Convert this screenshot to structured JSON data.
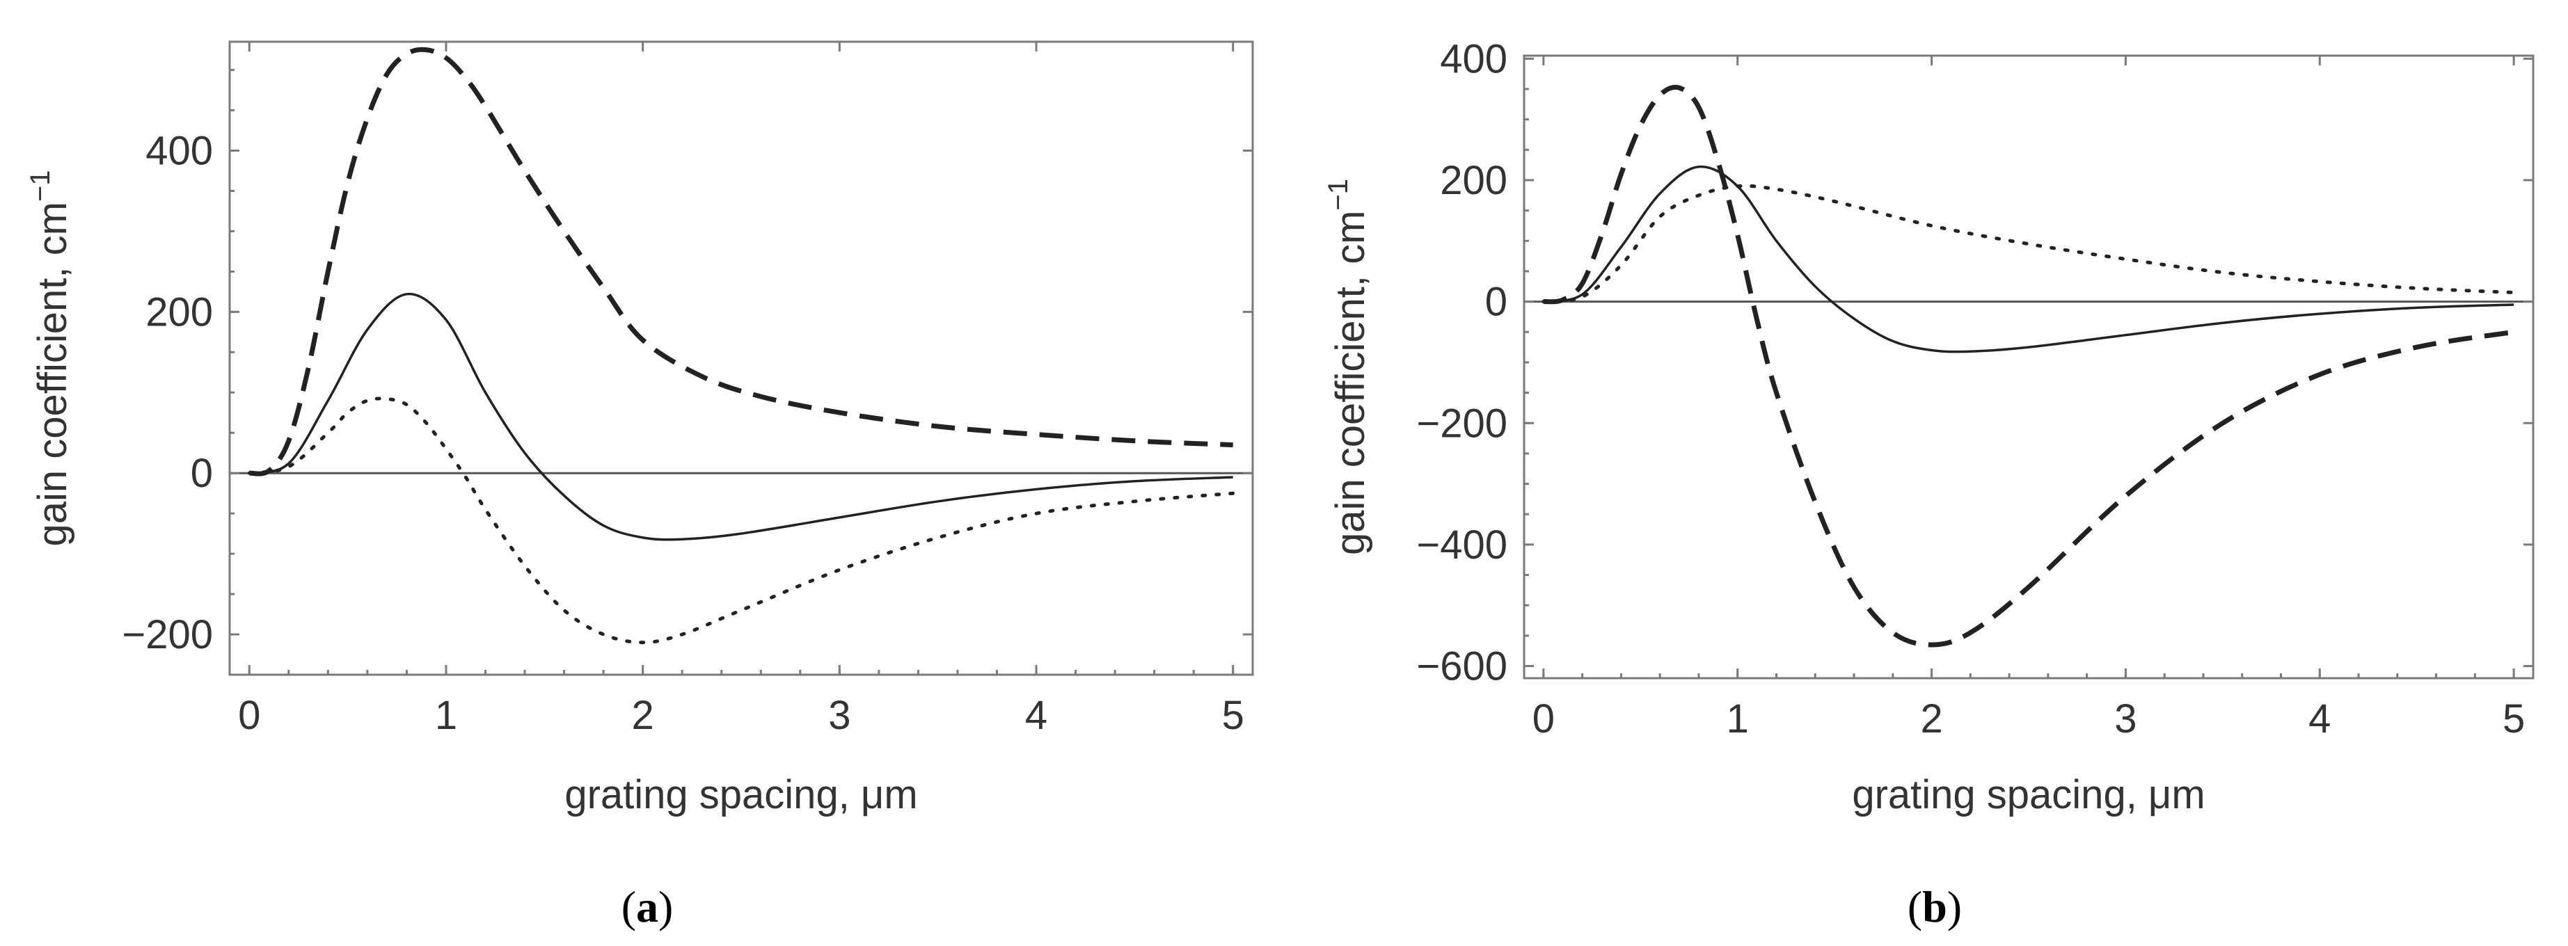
{
  "chart_data": [
    {
      "type": "line",
      "panel": "a",
      "caption_open": "(",
      "caption_letter": "a",
      "caption_close": ")",
      "xlabel": "grating spacing,  μm",
      "ylabel": "gain coefficient,  cm",
      "ylabel_superscript": "−1",
      "xlim": [
        -0.1,
        5.1
      ],
      "ylim": [
        -250,
        535
      ],
      "xticks": [
        0,
        1,
        2,
        3,
        4,
        5
      ],
      "xtick_labels": [
        "0",
        "1",
        "2",
        "3",
        "4",
        "5"
      ],
      "yticks": [
        -200,
        0,
        200,
        400
      ],
      "ytick_labels": [
        "−200",
        "0",
        "200",
        "400"
      ],
      "series": [
        {
          "name": "solid",
          "style": "solid",
          "x": [
            0,
            0.2,
            0.4,
            0.6,
            0.8,
            1.0,
            1.2,
            1.4,
            1.6,
            1.8,
            2.0,
            2.2,
            2.5,
            3.0,
            3.5,
            4.0,
            4.5,
            5.0
          ],
          "y": [
            0,
            12,
            90,
            178,
            222,
            190,
            100,
            25,
            -28,
            -65,
            -80,
            -82,
            -75,
            -55,
            -35,
            -20,
            -10,
            -5
          ]
        },
        {
          "name": "dashed",
          "style": "dashed",
          "x": [
            0,
            0.1,
            0.2,
            0.3,
            0.4,
            0.5,
            0.6,
            0.7,
            0.8,
            0.9,
            1.0,
            1.1,
            1.2,
            1.4,
            1.6,
            1.8,
            2.0,
            2.3,
            2.6,
            3.0,
            3.5,
            4.0,
            4.5,
            5.0
          ],
          "y": [
            0,
            3,
            40,
            130,
            250,
            360,
            440,
            495,
            520,
            525,
            515,
            490,
            455,
            375,
            300,
            230,
            165,
            120,
            95,
            75,
            58,
            48,
            40,
            35
          ]
        },
        {
          "name": "dotted",
          "style": "dotted",
          "x": [
            0,
            0.2,
            0.4,
            0.5,
            0.6,
            0.7,
            0.8,
            0.9,
            1.0,
            1.1,
            1.2,
            1.4,
            1.6,
            1.8,
            2.0,
            2.2,
            2.5,
            3.0,
            3.5,
            4.0,
            4.5,
            5.0
          ],
          "y": [
            0,
            8,
            50,
            75,
            90,
            92,
            85,
            62,
            30,
            -5,
            -45,
            -115,
            -170,
            -200,
            -210,
            -200,
            -170,
            -120,
            -80,
            -50,
            -35,
            -25
          ]
        }
      ]
    },
    {
      "type": "line",
      "panel": "b",
      "caption_open": "(",
      "caption_letter": "b",
      "caption_close": ")",
      "xlabel": "grating spacing,  μm",
      "ylabel": "gain coefficient,  cm",
      "ylabel_superscript": "−1",
      "xlim": [
        -0.1,
        5.1
      ],
      "ylim": [
        -620,
        405
      ],
      "xticks": [
        0,
        1,
        2,
        3,
        4,
        5
      ],
      "xtick_labels": [
        "0",
        "1",
        "2",
        "3",
        "4",
        "5"
      ],
      "yticks": [
        -600,
        -400,
        -200,
        0,
        200,
        400
      ],
      "ytick_labels": [
        "−600",
        "−400",
        "−200",
        "0",
        "200",
        "400"
      ],
      "series": [
        {
          "name": "solid",
          "style": "solid",
          "x": [
            0,
            0.2,
            0.4,
            0.6,
            0.8,
            1.0,
            1.2,
            1.4,
            1.6,
            1.8,
            2.0,
            2.2,
            2.5,
            3.0,
            3.5,
            4.0,
            4.5,
            5.0
          ],
          "y": [
            0,
            12,
            90,
            178,
            222,
            190,
            100,
            25,
            -28,
            -65,
            -80,
            -82,
            -75,
            -55,
            -35,
            -20,
            -10,
            -5
          ]
        },
        {
          "name": "dashed",
          "style": "dashed",
          "x": [
            0,
            0.1,
            0.2,
            0.3,
            0.4,
            0.5,
            0.6,
            0.7,
            0.8,
            0.9,
            1.0,
            1.1,
            1.2,
            1.4,
            1.6,
            1.8,
            2.0,
            2.2,
            2.5,
            3.0,
            3.5,
            4.0,
            4.5,
            5.0
          ],
          "y": [
            0,
            3,
            30,
            110,
            210,
            290,
            340,
            352,
            320,
            230,
            110,
            -30,
            -150,
            -330,
            -470,
            -545,
            -565,
            -545,
            -470,
            -320,
            -200,
            -120,
            -75,
            -50
          ]
        },
        {
          "name": "dotted",
          "style": "dotted",
          "x": [
            0,
            0.2,
            0.4,
            0.6,
            0.8,
            1.0,
            1.2,
            1.5,
            2.0,
            2.5,
            3.0,
            3.5,
            4.0,
            4.5,
            5.0
          ],
          "y": [
            0,
            8,
            60,
            140,
            175,
            190,
            185,
            165,
            125,
            95,
            70,
            48,
            33,
            22,
            15
          ]
        }
      ]
    }
  ]
}
